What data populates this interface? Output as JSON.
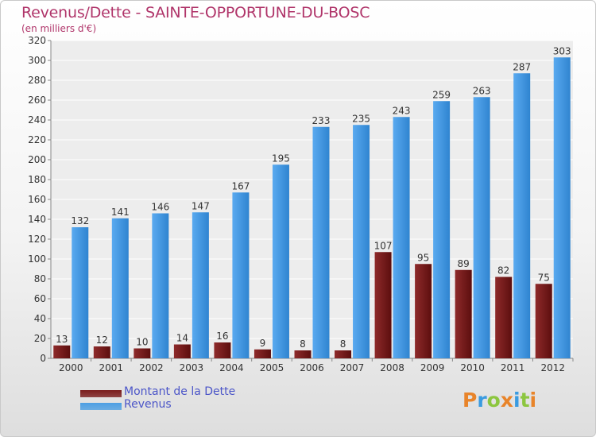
{
  "header": {
    "title": "Revenus/Dette - SAINTE-OPPORTUNE-DU-BOSC",
    "subtitle": "(en milliers d'€)"
  },
  "chart_data": {
    "type": "bar",
    "title": "Revenus/Dette - SAINTE-OPPORTUNE-DU-BOSC",
    "ylabel": "(en milliers d'€)",
    "xlabel": "",
    "categories": [
      "2000",
      "2001",
      "2002",
      "2003",
      "2004",
      "2005",
      "2006",
      "2007",
      "2008",
      "2009",
      "2010",
      "2011",
      "2012"
    ],
    "ylim": [
      0,
      320
    ],
    "yticks": [
      0,
      20,
      40,
      60,
      80,
      100,
      120,
      140,
      160,
      180,
      200,
      220,
      240,
      260,
      280,
      300,
      320
    ],
    "grid": true,
    "series": [
      {
        "name": "Montant de la Dette",
        "color": "#7a1c1c",
        "values": [
          13,
          12,
          10,
          14,
          16,
          9,
          8,
          8,
          107,
          95,
          89,
          82,
          75
        ]
      },
      {
        "name": "Revenus",
        "color": "#4d9fe3",
        "values": [
          132,
          141,
          146,
          147,
          167,
          195,
          233,
          235,
          243,
          259,
          263,
          287,
          303
        ]
      }
    ],
    "legend_position": "bottom-left"
  },
  "legend": [
    {
      "label": "Montant de la Dette",
      "color": "#7a1c1c"
    },
    {
      "label": "Revenus",
      "color": "#4d9fe3"
    }
  ],
  "logo": {
    "text": "Proxiti",
    "colors": [
      "#e8842a",
      "#3a9be0",
      "#8cc63f",
      "#e8842a",
      "#3a9be0",
      "#8cc63f",
      "#e8842a"
    ]
  }
}
